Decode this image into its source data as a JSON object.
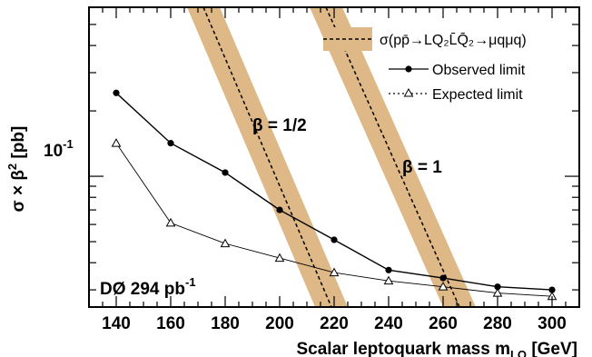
{
  "chart_data": {
    "type": "line",
    "xlabel_main": "Scalar leptoquark mass m",
    "xlabel_sub": "LQ",
    "xlabel_unit": " [GeV]",
    "ylabel_main": "σ × β",
    "ylabel_sup": "2",
    "ylabel_unit": " [pb]",
    "xlim": [
      130,
      310
    ],
    "ylim": [
      0.025,
      0.6
    ],
    "yscale": "log",
    "x_ticks": [
      140,
      160,
      180,
      200,
      220,
      240,
      260,
      280,
      300
    ],
    "x_tick_labels": [
      "140",
      "160",
      "180",
      "200",
      "220",
      "240",
      "260",
      "280",
      "300"
    ],
    "y_tick_label_base": "10",
    "y_tick_label_exp": "-1",
    "y_tick_value": 0.1,
    "x": [
      140,
      160,
      180,
      200,
      220,
      240,
      260,
      280,
      300
    ],
    "series": [
      {
        "name": "Observed limit",
        "values": [
          0.242,
          0.142,
          0.104,
          0.07,
          0.051,
          0.037,
          0.034,
          0.031,
          0.03
        ],
        "marker": "filled-circle",
        "style": "solid",
        "color": "#000000"
      },
      {
        "name": "Expected limit",
        "values": [
          0.142,
          0.061,
          0.049,
          0.042,
          0.036,
          0.033,
          0.031,
          0.029,
          0.028
        ],
        "marker": "open-triangle",
        "style": "solid-thin",
        "color": "#000000"
      }
    ],
    "theory_bands": [
      {
        "label": "β = 1/2",
        "x_at_top": 172,
        "x_at_bottom": 219,
        "half_width_x": 6
      },
      {
        "label": "β = 1",
        "x_at_top": 217,
        "x_at_bottom": 266,
        "half_width_x": 6
      }
    ],
    "legend": {
      "placement": "top-right",
      "theory_entry": "σ(pp̄→LQ₂L̄Q̄₂→μqμq)",
      "band_color": "#deb887"
    },
    "annotations": {
      "beta_half": "β = 1/2",
      "beta_one": "β = 1",
      "experiment": "DØ 294 pb",
      "experiment_sup": "-1"
    }
  }
}
